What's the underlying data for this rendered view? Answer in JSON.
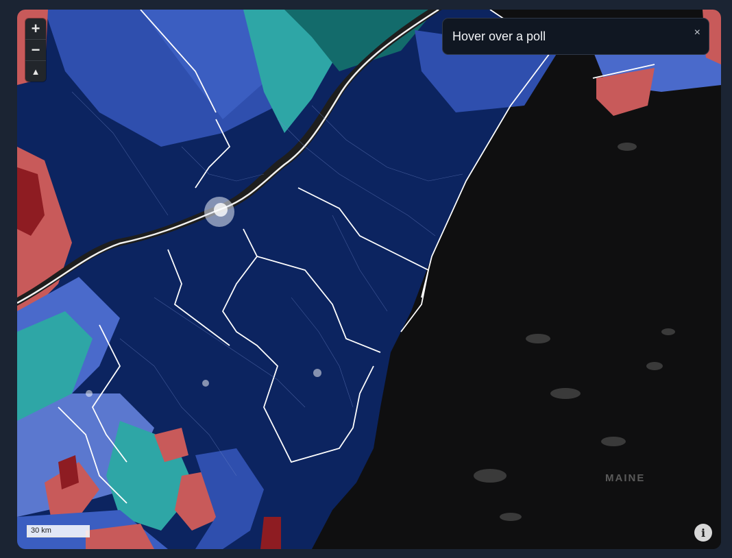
{
  "map": {
    "zoom_in_label": "+",
    "zoom_out_label": "−",
    "compass_label": "▲",
    "hover_panel_text": "Hover over a poll",
    "close_label": "×",
    "scale_label": "30 km",
    "info_label": "i",
    "state_label": "MAINE"
  },
  "colors": {
    "dark_blue": "#0c2460",
    "mid_blue": "#2f4fae",
    "light_blue": "#5b78cf",
    "teal": "#2ea6a6",
    "dark_teal": "#136b6b",
    "red": "#c85a5a",
    "dark_red": "#8e1c22",
    "land_dark": "#0f0f10",
    "river": "#1e1e1e"
  }
}
